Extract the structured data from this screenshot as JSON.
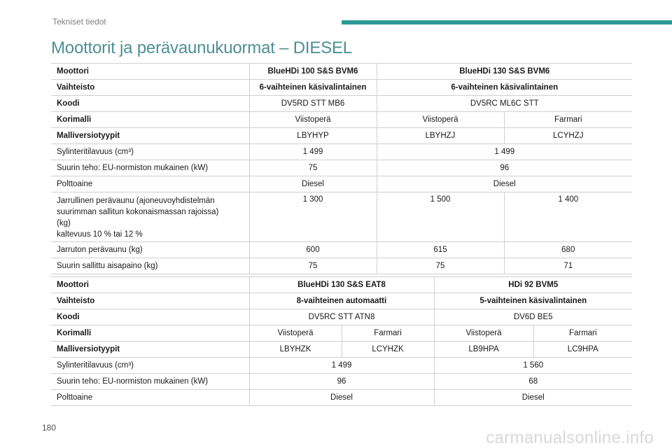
{
  "header": {
    "section": "Tekniset tiedot"
  },
  "title": "Moottorit ja perävaunukuormat – DIESEL",
  "table1": {
    "engine_label": "Moottori",
    "engine": [
      "BlueHDi 100 S&S BVM6",
      "BlueHDi 130 S&S BVM6"
    ],
    "gearbox_label": "Vaihteisto",
    "gearbox": [
      "6-vaihteinen käsivalintainen",
      "6-vaihteinen käsivalintainen"
    ],
    "code_label": "Koodi",
    "code": [
      "DV5RD STT MB6",
      "DV5RC ML6C STT"
    ],
    "body_label": "Korimalli",
    "body": [
      "Viistoperä",
      "Viistoperä",
      "Farmari"
    ],
    "variant_label": "Malliversiotyypit",
    "variant": [
      "LBYHYP",
      "LBYHZJ",
      "LCYHZJ"
    ],
    "displacement_label": "Sylinteritilavuus (cm³)",
    "displacement": [
      "1 499",
      "1 499"
    ],
    "power_label": "Suurin teho: EU-normiston mukainen (kW)",
    "power": [
      "75",
      "96"
    ],
    "fuel_label": "Polttoaine",
    "fuel": [
      "Diesel",
      "Diesel"
    ],
    "braked_label_l1": "Jarrullinen perävaunu (ajoneuvoyhdistelmän",
    "braked_label_l2": "suurimman sallitun kokonaismassan rajoissa)",
    "braked_label_l3": "(kg)",
    "braked_label_l4": "kaltevuus 10 % tai 12 %",
    "braked": [
      "1 300",
      "1 500",
      "1 400"
    ],
    "unbraked_label": "Jarruton perävaunu (kg)",
    "unbraked": [
      "600",
      "615",
      "680"
    ],
    "noseweight_label": "Suurin sallittu aisapaino (kg)",
    "noseweight": [
      "75",
      "75",
      "71"
    ]
  },
  "table2": {
    "engine_label": "Moottori",
    "engine": [
      "BlueHDi 130 S&S EAT8",
      "HDi 92 BVM5"
    ],
    "gearbox_label": "Vaihteisto",
    "gearbox": [
      "8-vaihteinen automaatti",
      "5-vaihteinen käsivalintainen"
    ],
    "code_label": "Koodi",
    "code": [
      "DV5RC STT ATN8",
      "DV6D BE5"
    ],
    "body_label": "Korimalli",
    "body": [
      "Viistoperä",
      "Farmari",
      "Viistoperä",
      "Farmari"
    ],
    "variant_label": "Malliversiotyypit",
    "variant": [
      "LBYHZK",
      "LCYHZK",
      "LB9HPA",
      "LC9HPA"
    ],
    "displacement_label": "Sylinteritilavuus (cm³)",
    "displacement": [
      "1 499",
      "1 560"
    ],
    "power_label": "Suurin teho: EU-normiston mukainen (kW)",
    "power": [
      "96",
      "68"
    ],
    "fuel_label": "Polttoaine",
    "fuel": [
      "Diesel",
      "Diesel"
    ]
  },
  "footer": {
    "page_number": "180",
    "watermark": "carmanualsonline.info"
  }
}
